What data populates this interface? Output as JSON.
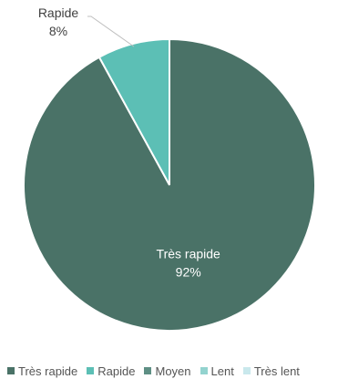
{
  "chart_data": {
    "type": "pie",
    "title": "",
    "categories": [
      "Très rapide",
      "Rapide",
      "Moyen",
      "Lent",
      "Très lent"
    ],
    "values": [
      92,
      8,
      0,
      0,
      0
    ],
    "value_labels": [
      "92%",
      "8%",
      "",
      "",
      ""
    ],
    "colors": [
      "#4a7267",
      "#5cbfb5",
      "#5e8f84",
      "#93d3cf",
      "#c9e8ec"
    ],
    "legend": "bottom",
    "start_angle": "12 o'clock, clockwise"
  }
}
